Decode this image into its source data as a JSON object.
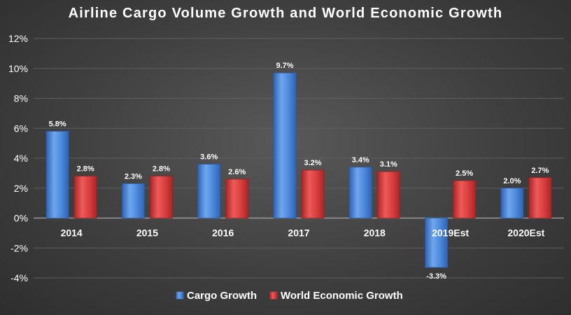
{
  "chart_data": {
    "type": "bar",
    "title": "Airline Cargo Volume Growth and World Economic Growth",
    "xlabel": "",
    "ylabel": "",
    "categories": [
      "2014",
      "2015",
      "2016",
      "2017",
      "2018",
      "2019Est",
      "2020Est"
    ],
    "series": [
      {
        "name": "Cargo Growth",
        "color": "#4a86d8",
        "values": [
          5.8,
          2.3,
          3.6,
          9.7,
          3.4,
          -3.3,
          2.0
        ],
        "labels": [
          "5.8%",
          "2.3%",
          "3.6%",
          "9.7%",
          "3.4%",
          "-3.3%",
          "2.0%"
        ]
      },
      {
        "name": "World Economic Growth",
        "color": "#d63c3c",
        "values": [
          2.8,
          2.8,
          2.6,
          3.2,
          3.1,
          2.5,
          2.7
        ],
        "labels": [
          "2.8%",
          "2.8%",
          "2.6%",
          "3.2%",
          "3.1%",
          "2.5%",
          "2.7%"
        ]
      }
    ],
    "ylim": [
      -4,
      12
    ],
    "yticks": [
      12,
      10,
      8,
      6,
      4,
      2,
      0,
      -2,
      -4
    ],
    "ytick_labels": [
      "12%",
      "10%",
      "8%",
      "6%",
      "4%",
      "2%",
      "0%",
      "-2%",
      "-4%"
    ],
    "grid": true,
    "legend_position": "bottom"
  }
}
